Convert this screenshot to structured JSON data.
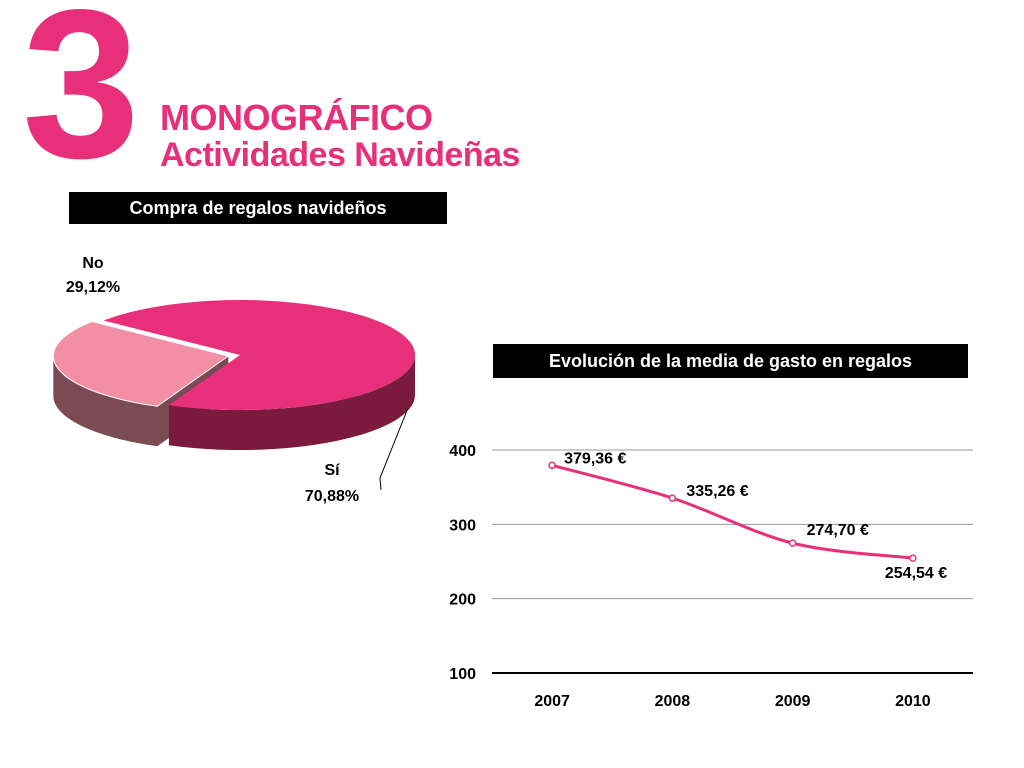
{
  "header": {
    "number": "3",
    "title": "MONOGRÁFICO",
    "subtitle": "Actividades Navideñas"
  },
  "colors": {
    "accent": "#e8307a",
    "pie_si_top": "#e8307a",
    "pie_si_side": "#7a1a3c",
    "pie_no_top": "#f38fa5",
    "pie_no_side": "#7a4a55",
    "line": "#e8307a",
    "grid": "#999999"
  },
  "chart_data": [
    {
      "type": "pie",
      "title": "Compra de regalos navideños",
      "slices": [
        {
          "label": "Sí",
          "value": 70.88,
          "value_label": "70,88%"
        },
        {
          "label": "No",
          "value": 29.12,
          "value_label": "29,12%"
        }
      ]
    },
    {
      "type": "line",
      "title": "Evolución de la media de gasto en regalos",
      "categories": [
        "2007",
        "2008",
        "2009",
        "2010"
      ],
      "values": [
        379.36,
        335.26,
        274.7,
        254.54
      ],
      "value_labels": [
        "379,36 €",
        "335,26 €",
        "274,70 €",
        "254,54 €"
      ],
      "yticks": [
        "400",
        "300",
        "200",
        "100"
      ],
      "ylim": [
        100,
        400
      ],
      "grid": true
    }
  ]
}
